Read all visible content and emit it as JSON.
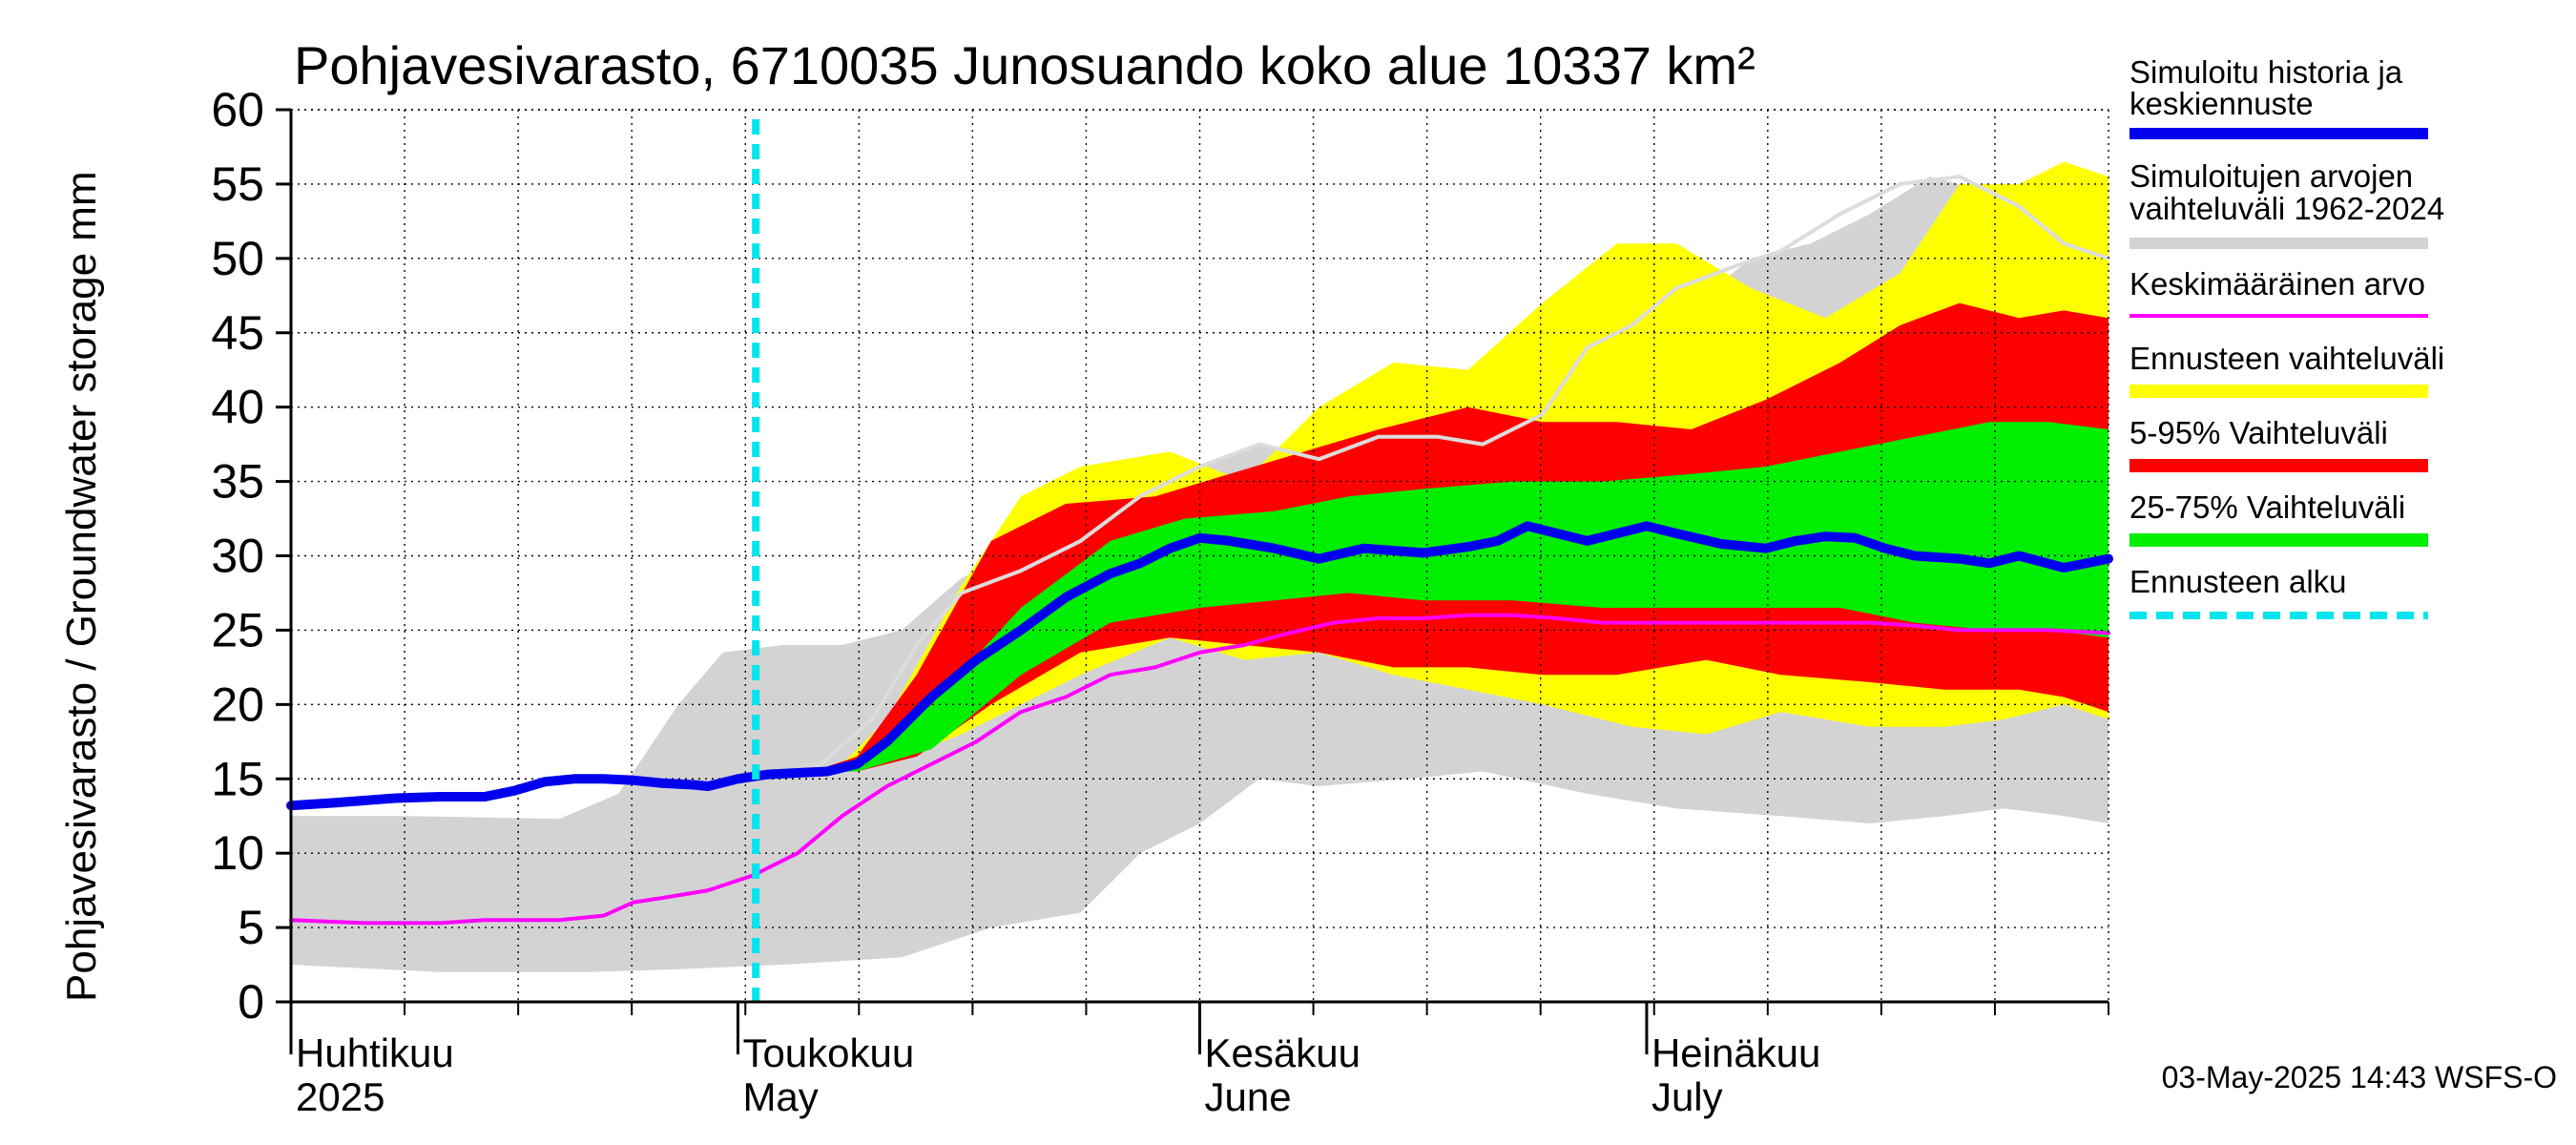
{
  "chart_data": {
    "type": "area",
    "title": "Pohjavesivarasto, 6710035 Junosuando koko alue 10337 km²",
    "ylabel": "Pohjavesivarasto / Groundwater storage   mm",
    "xlabel": "",
    "ylim": [
      0,
      60
    ],
    "yticks": [
      0,
      5,
      10,
      15,
      20,
      25,
      30,
      35,
      40,
      45,
      50,
      55,
      60
    ],
    "xlim": [
      0,
      122
    ],
    "grid": true,
    "month_labels": [
      {
        "day": 0,
        "fi": "Huhtikuu",
        "en": "2025"
      },
      {
        "day": 30,
        "fi": "Toukokuu",
        "en": "May"
      },
      {
        "day": 61,
        "fi": "Kesäkuu",
        "en": "June"
      },
      {
        "day": 91,
        "fi": "Heinäkuu",
        "en": "July"
      }
    ],
    "forecast_start_day": 31.2,
    "series": [
      {
        "name": "Simuloitujen arvojen vaihteluväli 1962-2024",
        "kind": "band",
        "color": "#d3d3d3",
        "upper": [
          [
            0,
            12.5
          ],
          [
            8,
            12.5
          ],
          [
            18,
            12.3
          ],
          [
            22,
            14
          ],
          [
            26,
            20
          ],
          [
            29,
            23.5
          ],
          [
            33,
            24
          ],
          [
            37,
            24
          ],
          [
            41,
            25
          ],
          [
            45,
            28.5
          ],
          [
            53,
            32
          ],
          [
            57,
            34
          ],
          [
            61,
            36
          ],
          [
            65,
            37.5
          ],
          [
            69,
            36.5
          ],
          [
            73,
            38
          ],
          [
            79,
            38
          ],
          [
            84,
            40.5
          ],
          [
            89,
            45
          ],
          [
            93,
            46
          ],
          [
            98,
            50
          ],
          [
            102,
            51
          ],
          [
            106,
            53
          ],
          [
            110,
            55.5
          ],
          [
            114,
            54.5
          ],
          [
            118,
            51
          ],
          [
            122,
            49
          ]
        ],
        "lower": [
          [
            0,
            2.5
          ],
          [
            10,
            2
          ],
          [
            20,
            2
          ],
          [
            26,
            2.2
          ],
          [
            33,
            2.5
          ],
          [
            41,
            3
          ],
          [
            47,
            5
          ],
          [
            53,
            6
          ],
          [
            57,
            10
          ],
          [
            61,
            12
          ],
          [
            65,
            15
          ],
          [
            69,
            14.5
          ],
          [
            75,
            15
          ],
          [
            80,
            15.5
          ],
          [
            87,
            14
          ],
          [
            93,
            13
          ],
          [
            100,
            12.5
          ],
          [
            106,
            12
          ],
          [
            111,
            12.5
          ],
          [
            115,
            13
          ],
          [
            119,
            12.5
          ],
          [
            122,
            12
          ]
        ]
      },
      {
        "name": "Ennusteen vaihteluväli",
        "kind": "band",
        "color": "#ffff00",
        "upper": [
          [
            35,
            15.5
          ],
          [
            37,
            16
          ],
          [
            40,
            19
          ],
          [
            45,
            28
          ],
          [
            49,
            34
          ],
          [
            53,
            36
          ],
          [
            59,
            37
          ],
          [
            64,
            35
          ],
          [
            69,
            40
          ],
          [
            74,
            43
          ],
          [
            79,
            42.5
          ],
          [
            84,
            47
          ],
          [
            89,
            51
          ],
          [
            93,
            51
          ],
          [
            98,
            48
          ],
          [
            103,
            46
          ],
          [
            108,
            49
          ],
          [
            112,
            55
          ],
          [
            116,
            55
          ],
          [
            119,
            56.5
          ],
          [
            122,
            55.5
          ]
        ],
        "lower": [
          [
            35,
            15.5
          ],
          [
            37,
            15.5
          ],
          [
            40,
            16
          ],
          [
            45,
            18
          ],
          [
            53,
            22
          ],
          [
            59,
            24.5
          ],
          [
            64,
            23
          ],
          [
            69,
            23.5
          ],
          [
            74,
            22
          ],
          [
            79,
            21
          ],
          [
            84,
            20
          ],
          [
            90,
            18.5
          ],
          [
            95,
            18
          ],
          [
            100,
            19.5
          ],
          [
            106,
            18.5
          ],
          [
            111,
            18.5
          ],
          [
            115,
            19
          ],
          [
            119,
            20
          ],
          [
            122,
            19
          ]
        ]
      },
      {
        "name": "5-95% Vaihteluväli",
        "kind": "band",
        "color": "#ff0000",
        "upper": [
          [
            35,
            15.5
          ],
          [
            38,
            16.5
          ],
          [
            42,
            22
          ],
          [
            47,
            31
          ],
          [
            52,
            33.5
          ],
          [
            58,
            34
          ],
          [
            63,
            35.5
          ],
          [
            68,
            37
          ],
          [
            73,
            38.5
          ],
          [
            79,
            40
          ],
          [
            84,
            39
          ],
          [
            89,
            39
          ],
          [
            94,
            38.5
          ],
          [
            99,
            40.5
          ],
          [
            104,
            43
          ],
          [
            108,
            45.5
          ],
          [
            112,
            47
          ],
          [
            116,
            46
          ],
          [
            119,
            46.5
          ],
          [
            122,
            46
          ]
        ],
        "lower": [
          [
            35,
            15.5
          ],
          [
            38,
            15.5
          ],
          [
            42,
            16.5
          ],
          [
            47,
            20
          ],
          [
            53,
            23.5
          ],
          [
            59,
            24.5
          ],
          [
            64,
            24
          ],
          [
            69,
            23.5
          ],
          [
            74,
            22.5
          ],
          [
            79,
            22.5
          ],
          [
            84,
            22
          ],
          [
            89,
            22
          ],
          [
            95,
            23
          ],
          [
            100,
            22
          ],
          [
            106,
            21.5
          ],
          [
            111,
            21
          ],
          [
            116,
            21
          ],
          [
            119,
            20.5
          ],
          [
            122,
            19.5
          ]
        ]
      },
      {
        "name": "25-75% Vaihteluväli",
        "kind": "band",
        "color": "#00ee00",
        "upper": [
          [
            35,
            15.5
          ],
          [
            38,
            16
          ],
          [
            43,
            20
          ],
          [
            49,
            26.5
          ],
          [
            55,
            31
          ],
          [
            60,
            32.5
          ],
          [
            66,
            33
          ],
          [
            71,
            34
          ],
          [
            76,
            34.5
          ],
          [
            82,
            35
          ],
          [
            88,
            35
          ],
          [
            94,
            35.5
          ],
          [
            99,
            36
          ],
          [
            104,
            37
          ],
          [
            109,
            38
          ],
          [
            114,
            39
          ],
          [
            118,
            39
          ],
          [
            122,
            38.5
          ]
        ],
        "lower": [
          [
            35,
            15.5
          ],
          [
            38,
            15.5
          ],
          [
            43,
            17
          ],
          [
            49,
            22
          ],
          [
            55,
            25.5
          ],
          [
            61,
            26.5
          ],
          [
            66,
            27
          ],
          [
            71,
            27.5
          ],
          [
            76,
            27
          ],
          [
            82,
            27
          ],
          [
            88,
            26.5
          ],
          [
            94,
            26.5
          ],
          [
            99,
            26.5
          ],
          [
            104,
            26.5
          ],
          [
            109,
            25.5
          ],
          [
            114,
            25
          ],
          [
            118,
            25
          ],
          [
            122,
            24.5
          ]
        ]
      },
      {
        "name": "Simuloitu historia ja keskiennuste",
        "kind": "line",
        "color": "#0000ee",
        "width": 10,
        "points": [
          [
            0,
            13.2
          ],
          [
            3,
            13.4
          ],
          [
            7,
            13.7
          ],
          [
            10,
            13.8
          ],
          [
            13,
            13.8
          ],
          [
            15,
            14.2
          ],
          [
            17,
            14.8
          ],
          [
            19,
            15
          ],
          [
            21,
            15
          ],
          [
            23,
            14.9
          ],
          [
            25,
            14.7
          ],
          [
            27,
            14.6
          ],
          [
            28,
            14.5
          ],
          [
            30,
            15
          ],
          [
            32,
            15.3
          ],
          [
            34,
            15.4
          ],
          [
            36,
            15.5
          ],
          [
            38,
            16
          ],
          [
            40,
            17.5
          ],
          [
            43,
            20.5
          ],
          [
            46,
            23
          ],
          [
            49,
            25
          ],
          [
            52,
            27.2
          ],
          [
            55,
            28.8
          ],
          [
            57,
            29.5
          ],
          [
            59,
            30.5
          ],
          [
            61,
            31.2
          ],
          [
            63,
            31
          ],
          [
            66,
            30.5
          ],
          [
            69,
            29.8
          ],
          [
            72,
            30.5
          ],
          [
            76,
            30.2
          ],
          [
            79,
            30.6
          ],
          [
            81,
            31
          ],
          [
            83,
            32
          ],
          [
            85,
            31.5
          ],
          [
            87,
            31
          ],
          [
            89,
            31.5
          ],
          [
            91,
            32
          ],
          [
            93,
            31.5
          ],
          [
            96,
            30.8
          ],
          [
            99,
            30.5
          ],
          [
            101,
            31
          ],
          [
            103,
            31.3
          ],
          [
            105,
            31.2
          ],
          [
            107,
            30.5
          ],
          [
            109,
            30
          ],
          [
            112,
            29.8
          ],
          [
            114,
            29.5
          ],
          [
            116,
            30
          ],
          [
            119,
            29.2
          ],
          [
            122,
            29.8
          ]
        ]
      },
      {
        "name": "Keskimääräinen arvo",
        "kind": "line",
        "color": "#ff00ff",
        "width": 4,
        "points": [
          [
            0,
            5.5
          ],
          [
            5,
            5.3
          ],
          [
            10,
            5.3
          ],
          [
            13,
            5.5
          ],
          [
            18,
            5.5
          ],
          [
            21,
            5.8
          ],
          [
            23,
            6.7
          ],
          [
            25,
            7
          ],
          [
            28,
            7.5
          ],
          [
            31,
            8.5
          ],
          [
            34,
            10
          ],
          [
            37,
            12.5
          ],
          [
            40,
            14.5
          ],
          [
            43,
            16
          ],
          [
            46,
            17.5
          ],
          [
            49,
            19.5
          ],
          [
            52,
            20.5
          ],
          [
            55,
            22
          ],
          [
            58,
            22.5
          ],
          [
            61,
            23.5
          ],
          [
            64,
            24
          ],
          [
            67,
            24.8
          ],
          [
            70,
            25.5
          ],
          [
            73,
            25.8
          ],
          [
            76,
            25.8
          ],
          [
            79,
            26
          ],
          [
            82,
            26
          ],
          [
            85,
            25.8
          ],
          [
            88,
            25.5
          ],
          [
            91,
            25.5
          ],
          [
            94,
            25.5
          ],
          [
            97,
            25.5
          ],
          [
            100,
            25.5
          ],
          [
            103,
            25.5
          ],
          [
            106,
            25.5
          ],
          [
            109,
            25.3
          ],
          [
            112,
            25
          ],
          [
            115,
            25
          ],
          [
            118,
            25
          ],
          [
            122,
            24.8
          ]
        ]
      },
      {
        "name": "Simuloitu historia (vaaleanharmaa ennuste)",
        "kind": "line",
        "color": "#dcdcdc",
        "width": 4,
        "points": [
          [
            35,
            15.5
          ],
          [
            39,
            19
          ],
          [
            42,
            24
          ],
          [
            45,
            27.5
          ],
          [
            49,
            29
          ],
          [
            53,
            31
          ],
          [
            57,
            34
          ],
          [
            61,
            36
          ],
          [
            65,
            37.5
          ],
          [
            69,
            36.5
          ],
          [
            73,
            38
          ],
          [
            77,
            38
          ],
          [
            80,
            37.5
          ],
          [
            84,
            39.5
          ],
          [
            87,
            44
          ],
          [
            90,
            45.5
          ],
          [
            93,
            48
          ],
          [
            97,
            49.5
          ],
          [
            100,
            50.5
          ],
          [
            104,
            53
          ],
          [
            108,
            55
          ],
          [
            112,
            55.5
          ],
          [
            116,
            53.5
          ],
          [
            119,
            51
          ],
          [
            122,
            50
          ]
        ]
      }
    ],
    "legend": [
      {
        "label": "Simuloitu historia ja keskiennuste",
        "color": "#0000ee",
        "style": "solid",
        "width": 12
      },
      {
        "label": "Simuloitujen arvojen vaihteluväli 1962-2024",
        "color": "#d3d3d3",
        "style": "solid",
        "width": 12
      },
      {
        "label": "Keskimääräinen arvo",
        "color": "#ff00ff",
        "style": "solid",
        "width": 4
      },
      {
        "label": "Ennusteen vaihteluväli",
        "color": "#ffff00",
        "style": "solid",
        "width": 14
      },
      {
        "label": "5-95% Vaihteluväli",
        "color": "#ff0000",
        "style": "solid",
        "width": 14
      },
      {
        "label": "25-75% Vaihteluväli",
        "color": "#00ee00",
        "style": "solid",
        "width": 14
      },
      {
        "label": "Ennusteen alku",
        "color": "#00e5ee",
        "style": "dashed",
        "width": 8
      }
    ],
    "timestamp": "03-May-2025 14:43 WSFS-O"
  },
  "legend_labels": {
    "l1a": "Simuloitu historia ja",
    "l1b": "keskiennuste",
    "l2a": "Simuloitujen arvojen",
    "l2b": "vaihteluväli 1962-2024",
    "l3": "Keskimääräinen arvo",
    "l4": "Ennusteen vaihteluväli",
    "l5": "5-95% Vaihteluväli",
    "l6": "25-75% Vaihteluväli",
    "l7": "Ennusteen alku"
  }
}
